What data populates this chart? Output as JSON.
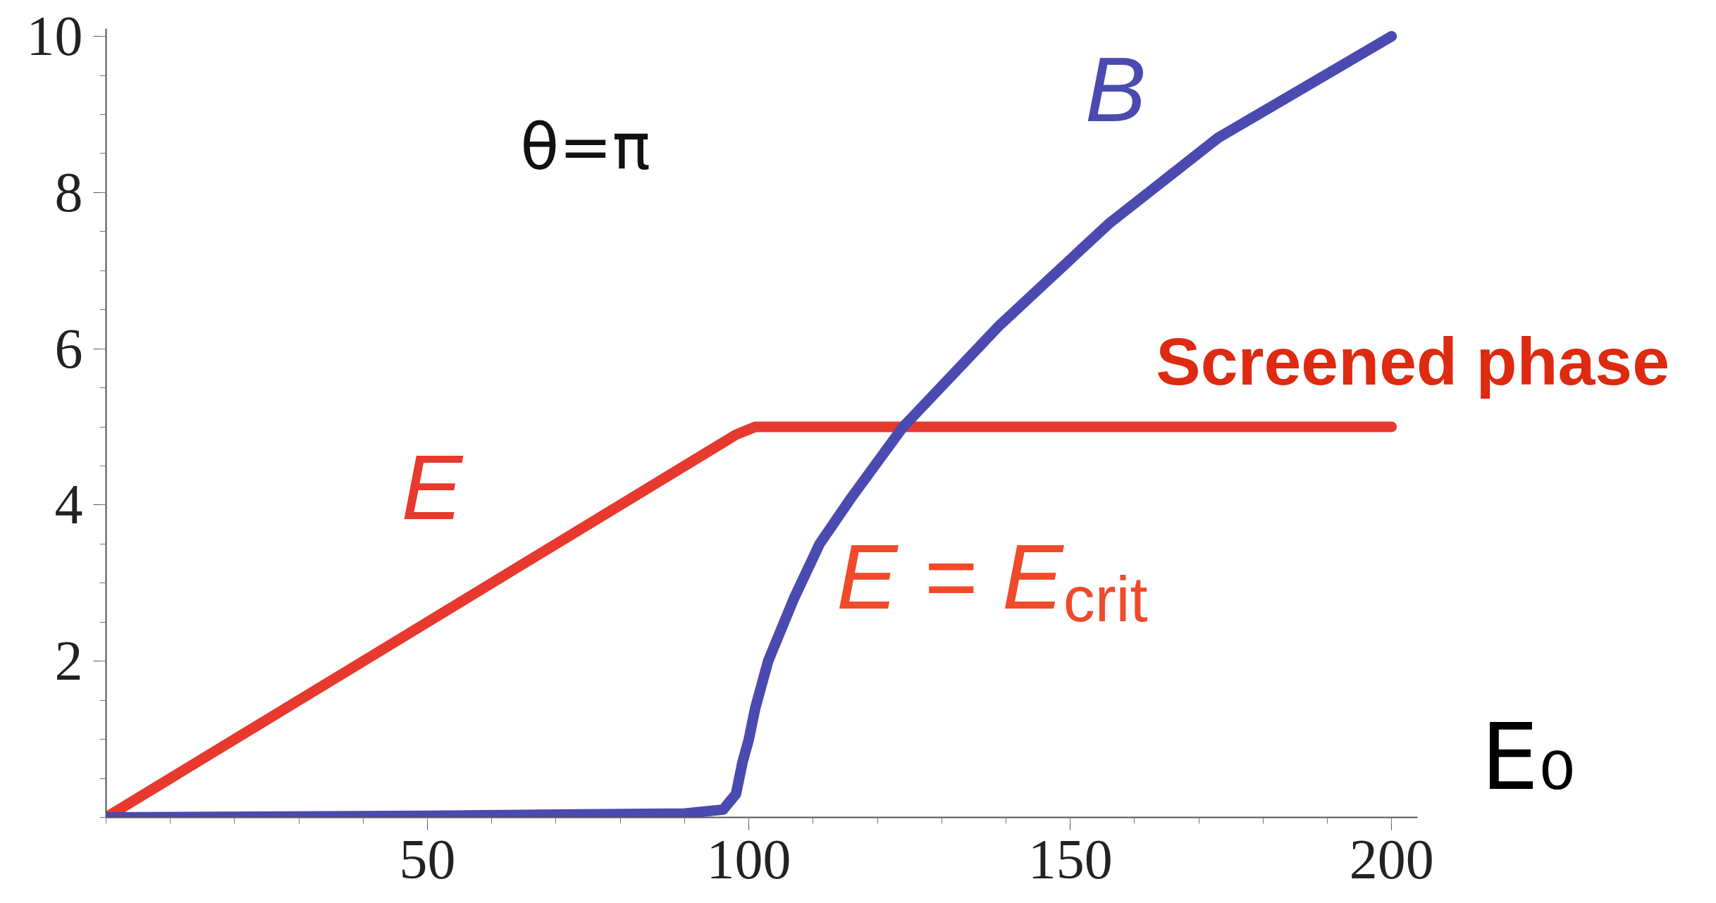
{
  "chart_data": {
    "type": "line",
    "xlabel": "E₀",
    "xlim": [
      0,
      204
    ],
    "ylim": [
      0,
      10.1
    ],
    "xticks": [
      50,
      100,
      150,
      200
    ],
    "yticks": [
      2,
      4,
      6,
      8,
      10
    ],
    "grid": false,
    "legend": false,
    "marker": "none",
    "line_style": "solid",
    "series": [
      {
        "name": "E",
        "color": "#e8392e",
        "x": [
          0,
          98,
          101,
          200
        ],
        "values": [
          0,
          4.9,
          5.0,
          5.0
        ]
      },
      {
        "name": "B",
        "color": "#4a4ab0",
        "x": [
          0,
          50,
          90,
          96,
          98,
          99,
          100,
          101,
          103,
          107,
          111,
          116,
          124,
          139,
          156,
          173,
          200
        ],
        "values": [
          0,
          0.02,
          0.05,
          0.1,
          0.3,
          0.7,
          1.0,
          1.4,
          2.0,
          2.8,
          3.5,
          4.1,
          5.0,
          6.3,
          7.6,
          8.7,
          10
        ]
      }
    ],
    "annotations": [
      "θ=π",
      {
        "text": "Screened phase",
        "x": 200,
        "y": 5.0
      },
      {
        "text": "E = E$_{crit}$",
        "x": 150,
        "y": 5.0
      }
    ]
  }
}
